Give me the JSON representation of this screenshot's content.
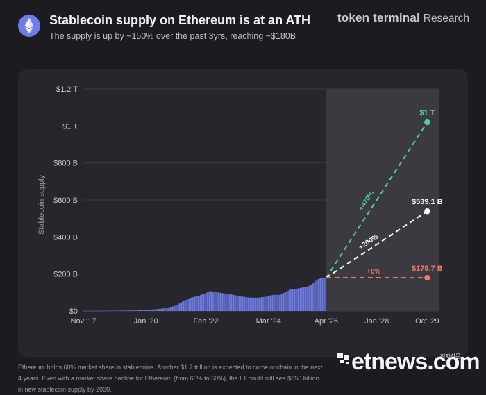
{
  "header": {
    "title": "Stablecoin supply on Ethereum is at an ATH",
    "subtitle": "The supply is up by ~150% over the past 3yrs, reaching ~$180B",
    "brand_name": "token terminal",
    "brand_suffix": "Research"
  },
  "colors": {
    "background": "#1c1c20",
    "panel": "#26262c",
    "forecast_shade": "#3a3a40",
    "bars": "#6f7de6",
    "high_scenario": "#4fd19c",
    "mid_scenario": "#ffffff",
    "flat_scenario": "#f07a6c"
  },
  "chart_data": {
    "type": "bar",
    "title": "Stablecoin supply on Ethereum is at an ATH",
    "ylabel": "Stablecoin supply",
    "xlabel": "",
    "ylim": [
      0,
      1200
    ],
    "y_unit": "B USD",
    "yticks": [
      0,
      200,
      400,
      600,
      800,
      1000,
      1200
    ],
    "ytick_labels": [
      "$0",
      "$200 B",
      "$400 B",
      "$600 B",
      "$800 B",
      "$1 T",
      "$1.2 T"
    ],
    "xlim": [
      2017.83,
      2030.15
    ],
    "xticks": [
      2017.83,
      2020.0,
      2022.08,
      2024.25,
      2026.25,
      2028.0,
      2029.75
    ],
    "xtick_labels": [
      "Nov '17",
      "Jan '20",
      "Feb '22",
      "Mar '24",
      "Apr '26",
      "Jan '28",
      "Oct '29"
    ],
    "forecast_start": 2026.25,
    "historical": {
      "x": [
        2017.83,
        2018.5,
        2019.0,
        2019.5,
        2020.0,
        2020.25,
        2020.5,
        2020.75,
        2021.0,
        2021.25,
        2021.5,
        2021.75,
        2022.0,
        2022.2,
        2022.4,
        2022.6,
        2022.8,
        2023.0,
        2023.3,
        2023.6,
        2023.85,
        2024.1,
        2024.3,
        2024.45,
        2024.6,
        2024.8,
        2025.0,
        2025.2,
        2025.4,
        2025.55,
        2025.7,
        2025.85,
        2026.0,
        2026.15,
        2026.25
      ],
      "values": [
        0.5,
        1,
        2,
        3,
        5,
        9,
        12,
        18,
        28,
        50,
        70,
        80,
        92,
        108,
        102,
        97,
        92,
        88,
        78,
        72,
        72,
        76,
        84,
        88,
        86,
        100,
        118,
        120,
        126,
        130,
        140,
        160,
        178,
        180,
        180
      ]
    },
    "series": [
      {
        "name": "+470%",
        "value_label": "$1 T",
        "x": [
          2026.25,
          2029.75
        ],
        "values": [
          180,
          1020
        ]
      },
      {
        "name": "+200%",
        "value_label": "$539.1 B",
        "x": [
          2026.25,
          2029.75
        ],
        "values": [
          180,
          539.1
        ]
      },
      {
        "name": "+0%",
        "value_label": "$179.7 B",
        "x": [
          2026.25,
          2029.75
        ],
        "values": [
          180,
          179.7
        ]
      }
    ]
  },
  "footnote": "Ethereum holds 60% market share in stablecoins. Another $1.7 trillion is expected to come onchain in the next 4 years. Even with a market share decline for Ethereum (from 60% to 50%), the L1 could still see $850 billion in new stablecoin supply by 2030.",
  "watermark": {
    "text": "etnews.com",
    "sub": "전자신문"
  }
}
